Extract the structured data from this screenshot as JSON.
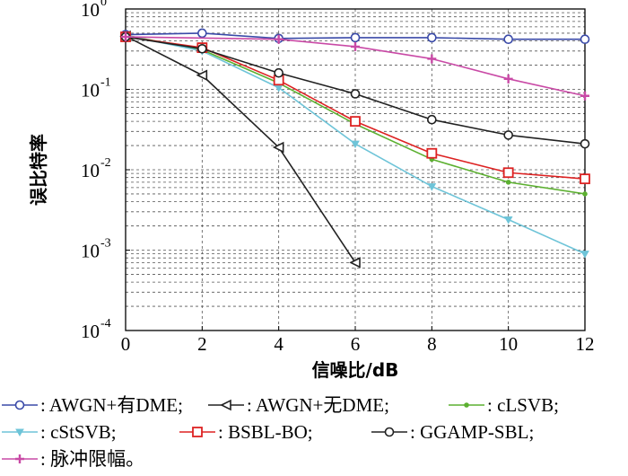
{
  "chart_data": {
    "type": "line",
    "xlabel": "信噪比/dB",
    "ylabel": "误比特率",
    "xlim": [
      0,
      12
    ],
    "ylim": [
      0.0001,
      1
    ],
    "yscale": "log",
    "grid": true,
    "x_ticks": [
      "0",
      "2",
      "4",
      "6",
      "8",
      "10",
      "12"
    ],
    "y_ticks": [
      {
        "base": "10",
        "exp": "0"
      },
      {
        "base": "10",
        "exp": "-1"
      },
      {
        "base": "10",
        "exp": "-2"
      },
      {
        "base": "10",
        "exp": "-3"
      },
      {
        "base": "10",
        "exp": "-4"
      }
    ],
    "legend_position": "bottom",
    "series": [
      {
        "name": "AWGN+有DME",
        "color": "#3a4aa8",
        "marker": "circle",
        "x": [
          0,
          2,
          4,
          6,
          8,
          10,
          12
        ],
        "y": [
          0.48,
          0.5,
          0.43,
          0.44,
          0.44,
          0.42,
          0.42
        ]
      },
      {
        "name": "AWGN+无DME",
        "color": "#222222",
        "marker": "triangle-left",
        "x": [
          0,
          2,
          4,
          6
        ],
        "y": [
          0.46,
          0.15,
          0.019,
          0.0007
        ]
      },
      {
        "name": "cLSVB",
        "color": "#5cb030",
        "marker": "dot",
        "x": [
          0,
          2,
          4,
          6,
          8,
          10,
          12
        ],
        "y": [
          0.47,
          0.31,
          0.12,
          0.037,
          0.0135,
          0.007,
          0.005
        ]
      },
      {
        "name": "cStSVB",
        "color": "#6ec4d8",
        "marker": "triangle-down",
        "x": [
          0,
          2,
          4,
          6,
          8,
          10,
          12
        ],
        "y": [
          0.47,
          0.3,
          0.105,
          0.021,
          0.0062,
          0.0024,
          0.0009
        ]
      },
      {
        "name": "BSBL-BO",
        "color": "#dd2222",
        "marker": "square",
        "x": [
          0,
          2,
          4,
          6,
          8,
          10,
          12
        ],
        "y": [
          0.45,
          0.33,
          0.13,
          0.04,
          0.016,
          0.0092,
          0.0077
        ]
      },
      {
        "name": "GGAMP-SBL",
        "color": "#222222",
        "marker": "circle",
        "x": [
          0,
          2,
          4,
          6,
          8,
          10,
          12
        ],
        "y": [
          0.45,
          0.32,
          0.16,
          0.088,
          0.042,
          0.027,
          0.021
        ]
      },
      {
        "name": "脉冲限幅",
        "color": "#c94aa6",
        "marker": "plus",
        "x": [
          0,
          4,
          6,
          8,
          10,
          12
        ],
        "y": [
          0.45,
          0.42,
          0.34,
          0.24,
          0.135,
          0.083
        ]
      }
    ]
  },
  "legend": {
    "sep": ":",
    "items": [
      {
        "label": "AWGN+有DME;"
      },
      {
        "label": "AWGN+无DME;"
      },
      {
        "label": "cLSVB;"
      },
      {
        "label": "cStSVB;"
      },
      {
        "label": "BSBL-BO;"
      },
      {
        "label": "GGAMP-SBL;"
      },
      {
        "label": "脉冲限幅。"
      }
    ]
  }
}
